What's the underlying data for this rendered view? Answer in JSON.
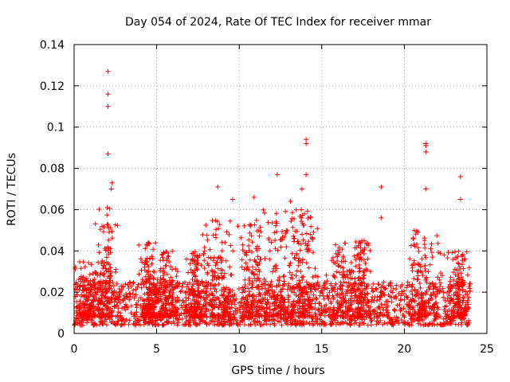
{
  "chart_data": {
    "type": "scatter",
    "title": "Day 054 of 2024, Rate Of TEC Index for receiver mmar",
    "xlabel": "GPS time / hours",
    "ylabel": "ROTI / TECUs",
    "xlim": [
      0,
      25
    ],
    "ylim": [
      0,
      0.14
    ],
    "xticks": [
      "0",
      "5",
      "10",
      "15",
      "20",
      "25"
    ],
    "yticks": [
      "0",
      "0.02",
      "0.04",
      "0.06",
      "0.08",
      "0.1",
      "0.12",
      "0.14"
    ],
    "grid": true,
    "marker": "+",
    "color": "#ff0000",
    "series": [
      {
        "name": "ROTI",
        "note": "dense band 0.005-0.025 across 0-24 h with activity bursts; notable outliers listed",
        "outliers": [
          [
            2.05,
            0.127
          ],
          [
            2.05,
            0.116
          ],
          [
            2.05,
            0.11
          ],
          [
            2.05,
            0.087
          ],
          [
            14.05,
            0.094
          ],
          [
            14.05,
            0.092
          ],
          [
            14.05,
            0.077
          ],
          [
            21.3,
            0.092
          ],
          [
            21.3,
            0.091
          ],
          [
            21.3,
            0.088
          ],
          [
            21.3,
            0.07
          ],
          [
            23.4,
            0.076
          ],
          [
            23.4,
            0.065
          ],
          [
            18.6,
            0.071
          ],
          [
            18.6,
            0.056
          ],
          [
            2.3,
            0.073
          ],
          [
            2.25,
            0.07
          ],
          [
            8.7,
            0.071
          ],
          [
            12.3,
            0.077
          ],
          [
            13.1,
            0.064
          ],
          [
            13.8,
            0.07
          ],
          [
            10.9,
            0.066
          ],
          [
            9.6,
            0.065
          ]
        ],
        "bursts": [
          {
            "center": 0.8,
            "width": 0.7,
            "peak": 0.035
          },
          {
            "center": 1.9,
            "width": 0.6,
            "peak": 0.062
          },
          {
            "center": 4.5,
            "width": 0.5,
            "peak": 0.045
          },
          {
            "center": 5.6,
            "width": 0.7,
            "peak": 0.04
          },
          {
            "center": 7.4,
            "width": 0.5,
            "peak": 0.04
          },
          {
            "center": 8.8,
            "width": 0.9,
            "peak": 0.055
          },
          {
            "center": 10.8,
            "width": 0.8,
            "peak": 0.055
          },
          {
            "center": 12.5,
            "width": 1.1,
            "peak": 0.06
          },
          {
            "center": 13.9,
            "width": 0.7,
            "peak": 0.06
          },
          {
            "center": 16.3,
            "width": 0.9,
            "peak": 0.045
          },
          {
            "center": 17.4,
            "width": 0.5,
            "peak": 0.045
          },
          {
            "center": 21.2,
            "width": 1.0,
            "peak": 0.05
          },
          {
            "center": 23.3,
            "width": 0.7,
            "peak": 0.04
          }
        ],
        "baseline_range": [
          0.004,
          0.025
        ],
        "x_range": [
          0,
          24
        ]
      }
    ]
  }
}
